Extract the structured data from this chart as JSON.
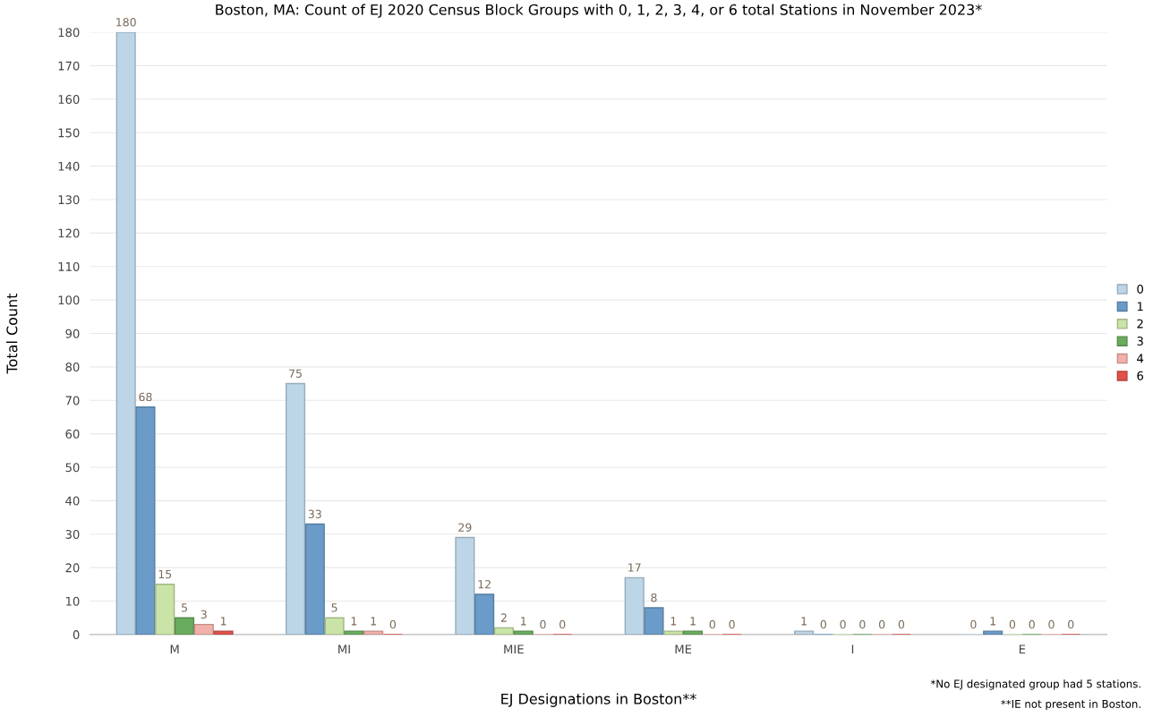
{
  "chart_data": {
    "type": "bar",
    "title": "Boston, MA: Count of EJ 2020 Census Block Groups with 0, 1, 2, 3, 4, or 6 total Stations in November 2023*",
    "xlabel": "EJ Designations in Boston**",
    "ylabel": "Total Count",
    "categories": [
      "M",
      "MI",
      "MIE",
      "ME",
      "I",
      "E"
    ],
    "series": [
      {
        "name": "0",
        "color": "#bcd6e8",
        "values": [
          180,
          75,
          29,
          17,
          1,
          0
        ]
      },
      {
        "name": "1",
        "color": "#6b9bc8",
        "values": [
          68,
          33,
          12,
          8,
          0,
          1
        ]
      },
      {
        "name": "2",
        "color": "#c9e4a6",
        "values": [
          15,
          5,
          2,
          1,
          0,
          0
        ]
      },
      {
        "name": "3",
        "color": "#6aac5e",
        "values": [
          5,
          1,
          1,
          1,
          0,
          0
        ]
      },
      {
        "name": "4",
        "color": "#f2b0aa",
        "values": [
          3,
          1,
          0,
          0,
          0,
          0
        ]
      },
      {
        "name": "6",
        "color": "#e0524a",
        "values": [
          1,
          0,
          0,
          0,
          0,
          0
        ]
      }
    ],
    "ylim": [
      0,
      180
    ],
    "yticks": [
      0,
      10,
      20,
      30,
      40,
      50,
      60,
      70,
      80,
      90,
      100,
      110,
      120,
      130,
      140,
      150,
      160,
      170,
      180
    ],
    "grid": "y",
    "legend": "right",
    "data_labels": true,
    "annotations": [
      "*No EJ designated group had 5 stations.",
      "**IE not present in Boston."
    ]
  }
}
